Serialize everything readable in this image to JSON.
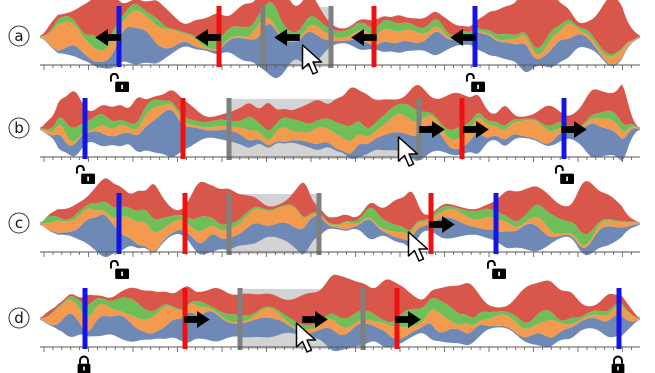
{
  "panels": [
    {
      "label": "a",
      "state": "unlocked",
      "arrow_direction": "left"
    },
    {
      "label": "b",
      "state": "unlocked",
      "arrow_direction": "right"
    },
    {
      "label": "c",
      "state": "unlocked",
      "arrow_direction": "right"
    },
    {
      "label": "d",
      "state": "locked",
      "arrow_direction": "right"
    }
  ],
  "colors": {
    "red_layer": "#d9574a",
    "orange_layer": "#f39a4e",
    "green_layer": "#6fbf58",
    "blue_layer": "#6e89b5",
    "blue_marker": "#1414e6",
    "red_marker": "#ee1111",
    "selection_fill": "#d3d3d3",
    "selection_edge": "#808080",
    "arrow": "#000000",
    "axis": "#555555"
  },
  "icons": {
    "marker_arrow": "arrow-icon",
    "lock_closed": "lock-closed-icon",
    "lock_open": "lock-open-icon",
    "cursor": "mouse-cursor-icon"
  }
}
